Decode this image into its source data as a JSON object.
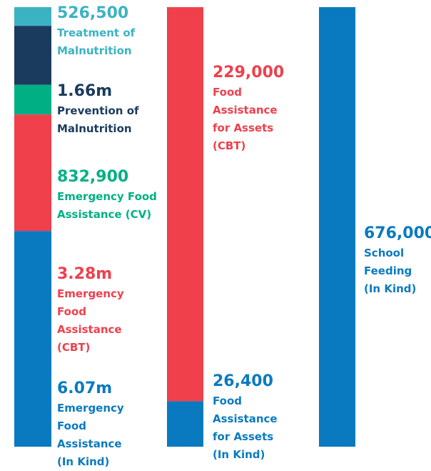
{
  "chart_data": {
    "type": "stacked_bar",
    "stacks": [
      [
        {
          "name": "Treatment of\nMalnutrition",
          "color": "#3bb3c3",
          "value": 526500,
          "value_label": "526,500"
        },
        {
          "name": "Prevention of\nMalnutrition",
          "color": "#1b3b5e",
          "value": 1660000,
          "value_label": "1.66m"
        },
        {
          "name": "Emergency Food\nAssistance (CV)",
          "color": "#00b085",
          "value": 832900,
          "value_label": "832,900"
        },
        {
          "name": "Emergency\nFood\nAssistance\n(CBT)",
          "color": "#ef404c",
          "value": 3280000,
          "value_label": "3.28m"
        },
        {
          "name": "Emergency\nFood\nAssistance\n(In Kind)",
          "color": "#0a7ac0",
          "value": 6070000,
          "value_label": "6.07m"
        }
      ],
      [
        {
          "name": "Food\nAssistance\nfor Assets\n(CBT)",
          "color": "#ef404c",
          "value": 229000,
          "value_label": "229,000"
        },
        {
          "name": "Food\nAssistance\nfor Assets\n(In Kind)",
          "color": "#0a7ac0",
          "value": 26400,
          "value_label": "26,400"
        }
      ],
      [
        {
          "name": "School\nFeeding\n(In Kind)",
          "color": "#0a7ac0",
          "value": 676000,
          "value_label": "676,000"
        }
      ]
    ]
  }
}
